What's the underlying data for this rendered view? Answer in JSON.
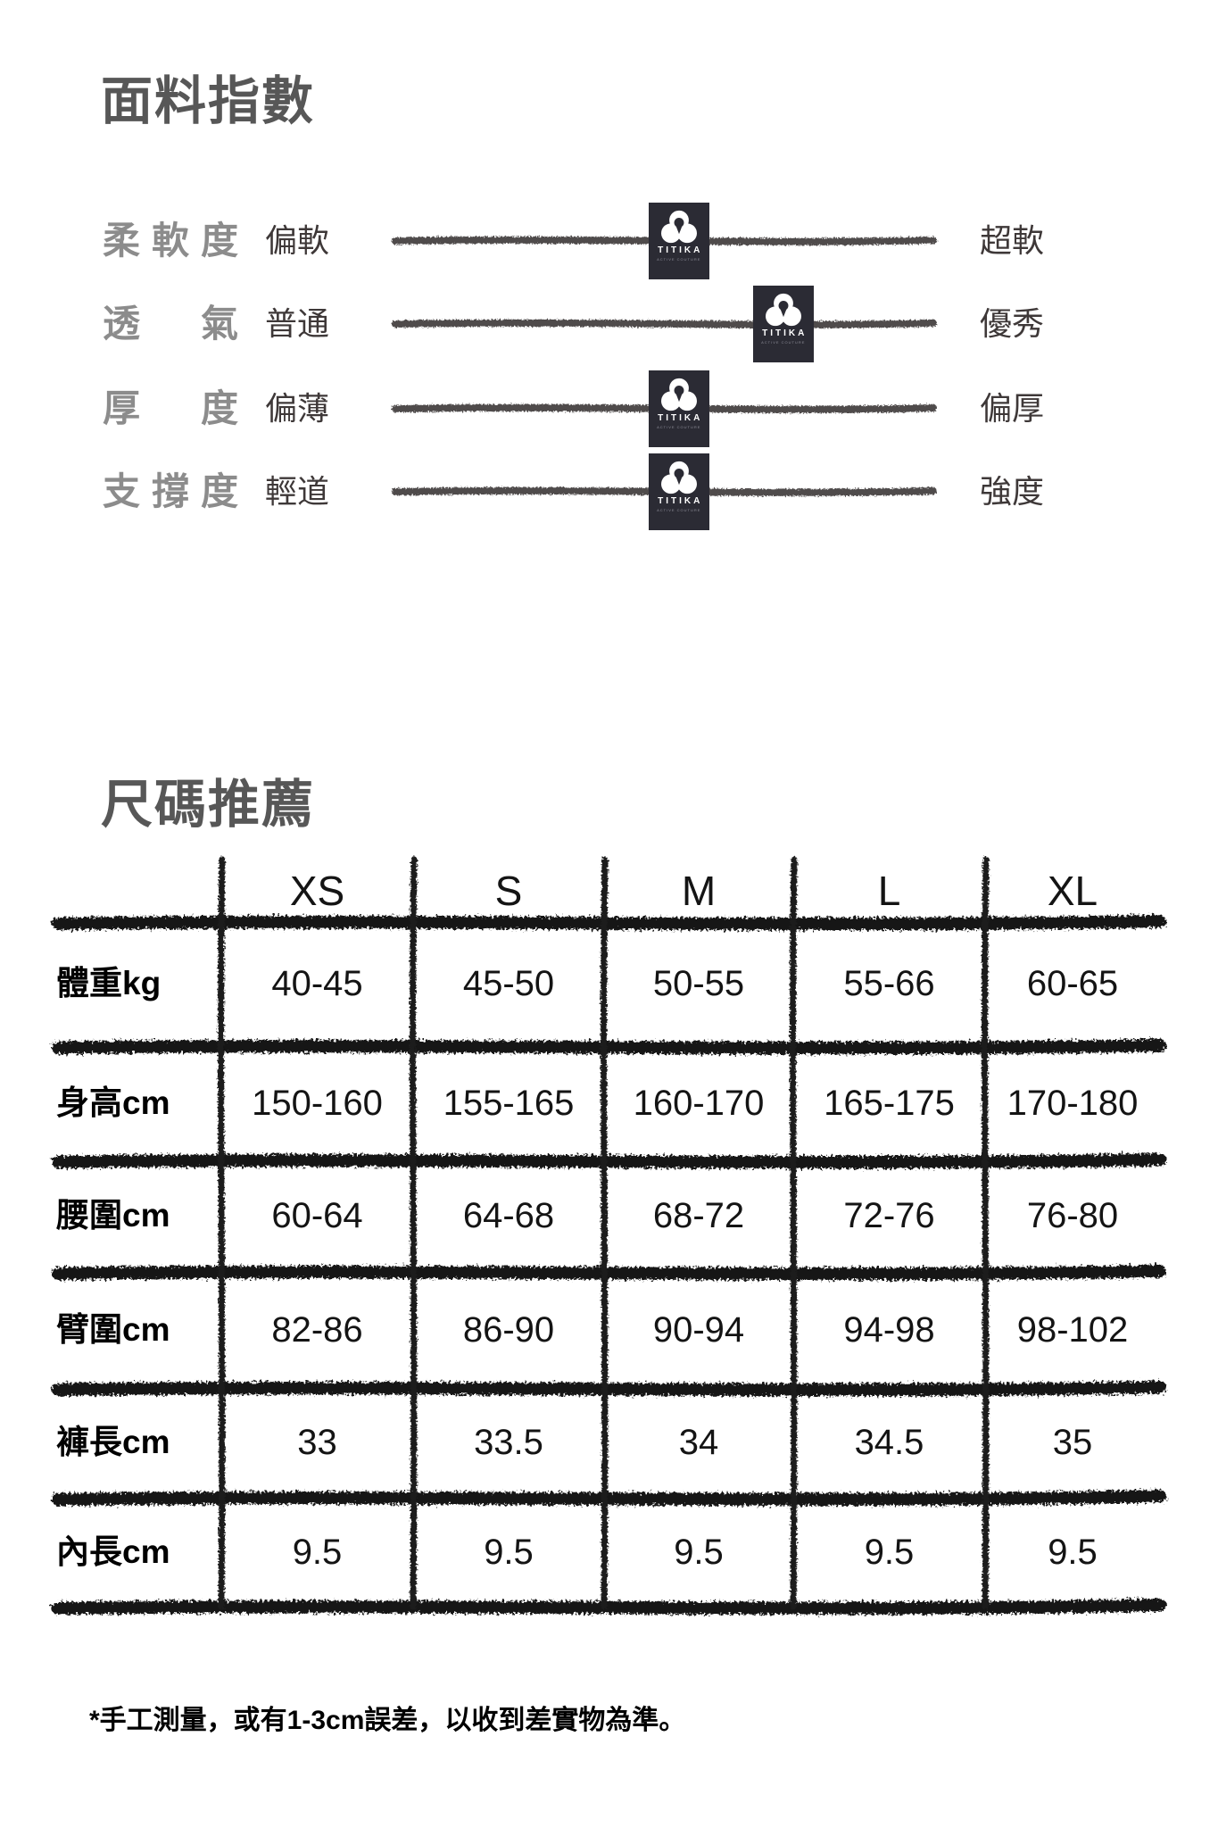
{
  "fabric_index": {
    "title": "面料指數",
    "rows": [
      {
        "label": "柔軟度",
        "min": "偏軟",
        "max": "超軟",
        "value_pct": 52.7
      },
      {
        "label": "透 氣",
        "min": "普通",
        "max": "優秀",
        "value_pct": 72.1
      },
      {
        "label": "厚 度",
        "min": "偏薄",
        "max": "偏厚",
        "value_pct": 52.7
      },
      {
        "label": "支撐度",
        "min": "輕道",
        "max": "強度",
        "value_pct": 52.7
      }
    ]
  },
  "brand": {
    "name": "TITIKA",
    "tagline": "ACTIVE COUTURE"
  },
  "size_chart": {
    "title": "尺碼推薦",
    "columns": [
      "XS",
      "S",
      "M",
      "L",
      "XL"
    ],
    "rows": [
      {
        "label": "體重kg",
        "values": [
          "40-45",
          "45-50",
          "50-55",
          "55-66",
          "60-65"
        ]
      },
      {
        "label": "身高cm",
        "values": [
          "150-160",
          "155-165",
          "160-170",
          "165-175",
          "170-180"
        ]
      },
      {
        "label": "腰圍cm",
        "values": [
          "60-64",
          "64-68",
          "68-72",
          "72-76",
          "76-80"
        ]
      },
      {
        "label": "臂圍cm",
        "values": [
          "82-86",
          "86-90",
          "90-94",
          "94-98",
          "98-102"
        ]
      },
      {
        "label": "褲長cm",
        "values": [
          "33",
          "33.5",
          "34",
          "34.5",
          "35"
        ]
      },
      {
        "label": "內長cm",
        "values": [
          "9.5",
          "9.5",
          "9.5",
          "9.5",
          "9.5"
        ]
      }
    ],
    "footnote": "*手工測量，或有1-3cm誤差，以收到差實物為準。"
  },
  "colors": {
    "title_gray": "#575757",
    "row_label_gray": "#8c8c8c",
    "value_ink": "#3e3838",
    "slider_line": "#4f4c4c",
    "table_ink": "#141414",
    "brand_box": "#2b2b34"
  }
}
